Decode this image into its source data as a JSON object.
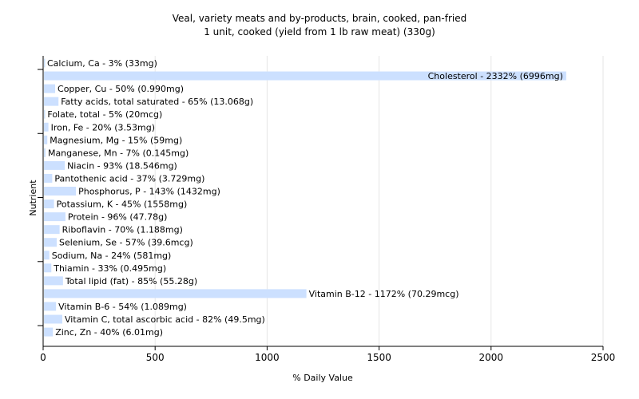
{
  "chart_data": {
    "type": "bar",
    "orientation": "horizontal",
    "title": "Veal, variety meats and by-products, brain, cooked, pan-fried",
    "subtitle": "1 unit, cooked (yield from 1 lb raw meat) (330g)",
    "xlabel": "% Daily Value",
    "ylabel": "Nutrient",
    "xlim": [
      0,
      2500
    ],
    "xticks": [
      0,
      500,
      1000,
      1500,
      2000,
      2500
    ],
    "grid": true,
    "bar_color": "#cce0ff",
    "categories": [
      "Calcium, Ca",
      "Cholesterol",
      "Copper, Cu",
      "Fatty acids, total saturated",
      "Folate, total",
      "Iron, Fe",
      "Magnesium, Mg",
      "Manganese, Mn",
      "Niacin",
      "Pantothenic acid",
      "Phosphorus, P",
      "Potassium, K",
      "Protein",
      "Riboflavin",
      "Selenium, Se",
      "Sodium, Na",
      "Thiamin",
      "Total lipid (fat)",
      "Vitamin B-12",
      "Vitamin B-6",
      "Vitamin C, total ascorbic acid",
      "Zinc, Zn"
    ],
    "values": [
      3,
      2332,
      50,
      65,
      5,
      20,
      15,
      7,
      93,
      37,
      143,
      45,
      96,
      70,
      57,
      24,
      33,
      85,
      1172,
      54,
      82,
      40
    ],
    "labels": [
      "Calcium, Ca - 3% (33mg)",
      "Cholesterol - 2332% (6996mg)",
      "Copper, Cu - 50% (0.990mg)",
      "Fatty acids, total saturated - 65% (13.068g)",
      "Folate, total - 5% (20mcg)",
      "Iron, Fe - 20% (3.53mg)",
      "Magnesium, Mg - 15% (59mg)",
      "Manganese, Mn - 7% (0.145mg)",
      "Niacin - 93% (18.546mg)",
      "Pantothenic acid - 37% (3.729mg)",
      "Phosphorus, P - 143% (1432mg)",
      "Potassium, K - 45% (1558mg)",
      "Protein - 96% (47.78g)",
      "Riboflavin - 70% (1.188mg)",
      "Selenium, Se - 57% (39.6mcg)",
      "Sodium, Na - 24% (581mg)",
      "Thiamin - 33% (0.495mg)",
      "Total lipid (fat) - 85% (55.28g)",
      "Vitamin B-12 - 1172% (70.29mcg)",
      "Vitamin B-6 - 54% (1.089mg)",
      "Vitamin C, total ascorbic acid - 82% (49.5mg)",
      "Zinc, Zn - 40% (6.01mg)"
    ]
  }
}
